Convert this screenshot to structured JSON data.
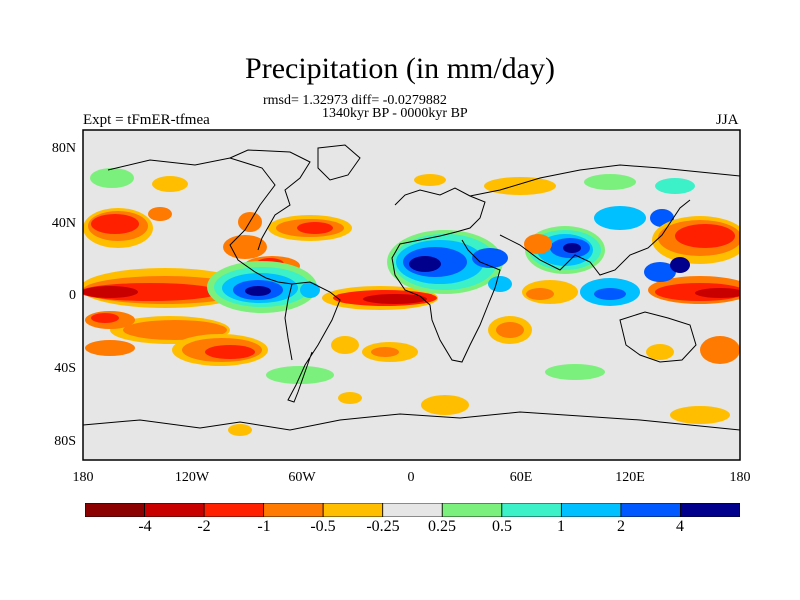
{
  "header": {
    "title": "Precipitation (in mm/day)",
    "stats": "rmsd= 1.32973 diff= -0.0279882",
    "period": "1340kyr BP - 0000kyr BP",
    "experiment": "Expt = tFmER-tfmea",
    "season": "JJA"
  },
  "axes": {
    "y_ticks": [
      "80N",
      "40N",
      "0",
      "40S",
      "80S"
    ],
    "x_ticks": [
      "180",
      "120W",
      "60W",
      "0",
      "60E",
      "120E",
      "180"
    ]
  },
  "colorbar": {
    "colors": [
      "#8b0000",
      "#c80000",
      "#ff2000",
      "#ff7a00",
      "#ffbf00",
      "#e6e6e6",
      "#7cf07c",
      "#3cf0c8",
      "#00c0ff",
      "#0058ff",
      "#00008c"
    ],
    "labels": [
      "-4",
      "-2",
      "-1",
      "-0.5",
      "-0.25",
      "0.25",
      "0.5",
      "1",
      "2",
      "4"
    ]
  },
  "colors": {
    "ocean_background": "#e6e6e6",
    "coastline": "#000000"
  }
}
